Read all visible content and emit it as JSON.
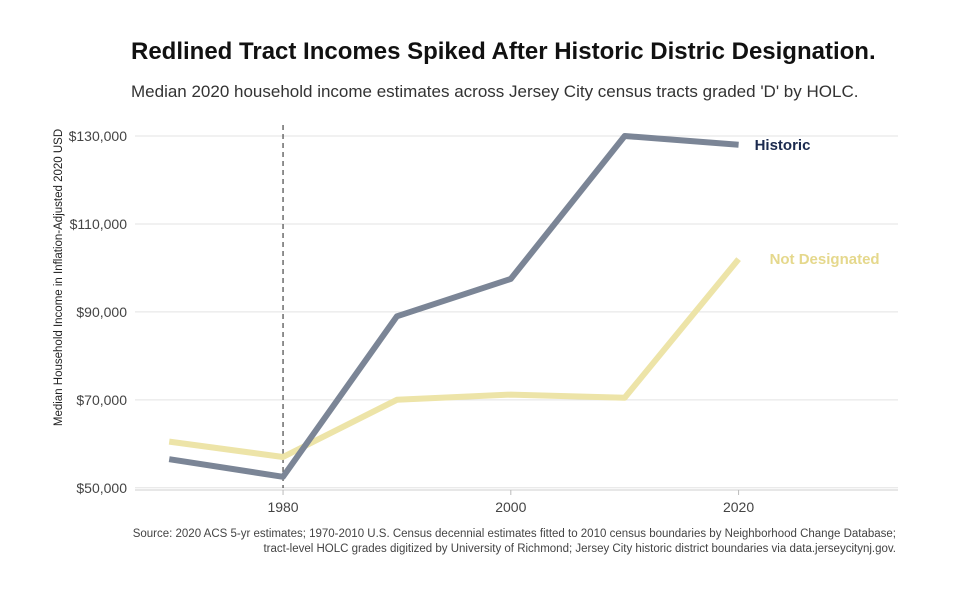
{
  "title": "Redlined Tract Incomes Spiked After Historic Distric Designation.",
  "subtitle": "Median 2020 household income estimates across Jersey City census tracts graded 'D' by HOLC.",
  "caption": {
    "line1": "Source: 2020 ACS 5-yr estimates; 1970-2010 U.S. Census decennial estimates fitted to 2010 census boundaries by Neighborhood Change Database;",
    "line2": "tract-level HOLC grades digitized by University of Richmond; Jersey City historic district boundaries via data.jerseycitynj.gov."
  },
  "chart_data": {
    "type": "line",
    "ylabel": "Median Household Income in Inflation-Adjusted 2020 USD",
    "xlabel": "",
    "x": [
      1970,
      1980,
      1990,
      2000,
      2010,
      2020
    ],
    "xlim": [
      1967,
      2034
    ],
    "ylim": [
      49500,
      132500
    ],
    "xticks": [
      1980,
      2000,
      2020
    ],
    "xtick_labels": [
      "1980",
      "2000",
      "2020"
    ],
    "yticks": [
      50000,
      70000,
      90000,
      110000,
      130000
    ],
    "ytick_labels": [
      "$50,000",
      "$70,000",
      "$90,000",
      "$110,000",
      "$130,000"
    ],
    "grid": "horizontal",
    "reference_line": {
      "x": 1980,
      "style": "dashed",
      "color": "#555555"
    },
    "series": [
      {
        "name": "Historic",
        "color": "#7b8596",
        "label_color": "#1b2a4e",
        "values": [
          56500,
          52500,
          89000,
          97500,
          130000,
          128000
        ]
      },
      {
        "name": "Not Designated",
        "color": "#ede4a8",
        "label_color": "#e5d88c",
        "values": [
          60500,
          57000,
          70000,
          71200,
          70500,
          102000
        ]
      }
    ],
    "legend": "direct labels at line ends"
  }
}
